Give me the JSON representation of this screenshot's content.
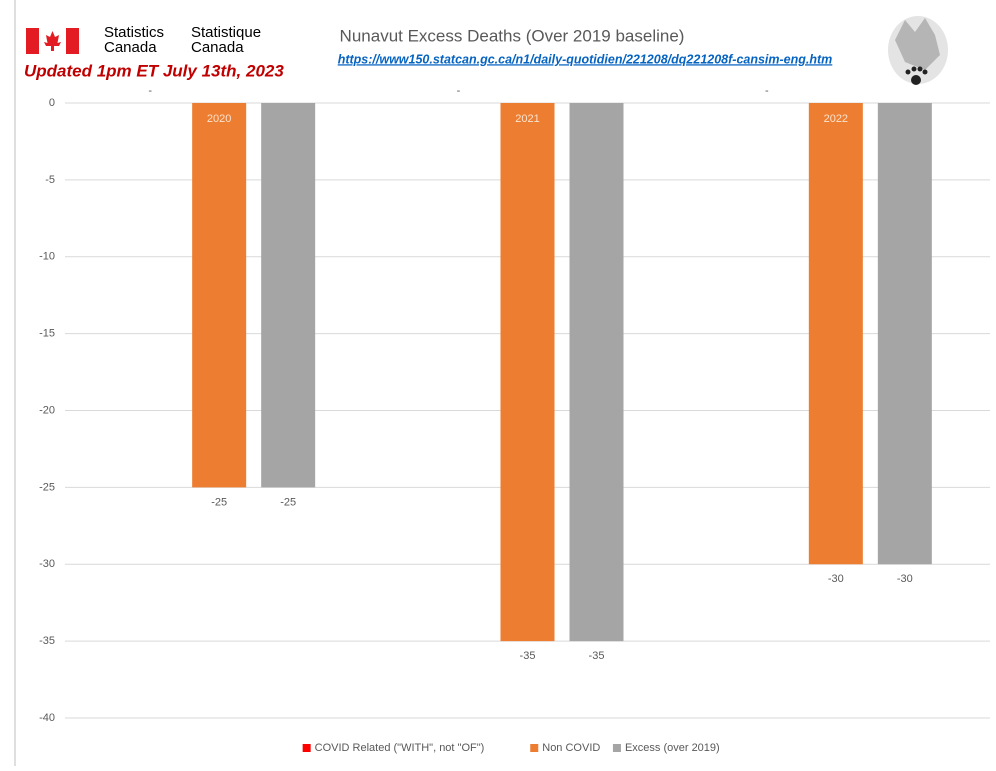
{
  "chart_data": {
    "type": "bar",
    "org_names": [
      "Statistics",
      "Canada",
      "Statistique",
      "Canada"
    ],
    "note": "Updated 1pm ET July 13th, 2023",
    "title": "Nunavut Excess Deaths (Over 2019 baseline)",
    "source": "https://www150.statcan.gc.ca/n1/daily-quotidien/221208/dq221208f-cansim-eng.htm",
    "categories": [
      "2020",
      "2021",
      "2022"
    ],
    "series": [
      {
        "name": "COVID Related (\"WITH\", not \"OF\")",
        "color": "#ff0000",
        "values": [
          0,
          0,
          0
        ],
        "value_labels": [
          "-",
          "-",
          "-"
        ]
      },
      {
        "name": "Non COVID",
        "color": "#ed7d31",
        "values": [
          -25,
          -35,
          -30
        ]
      },
      {
        "name": "Excess (over 2019)",
        "color": "#a5a5a5",
        "values": [
          -25,
          -35,
          -30
        ]
      }
    ],
    "ylim": [
      -40,
      0
    ],
    "yticks": [
      0,
      -5,
      -10,
      -15,
      -20,
      -25,
      -30,
      -35,
      -40
    ],
    "grid": true,
    "legend": "bottom"
  }
}
